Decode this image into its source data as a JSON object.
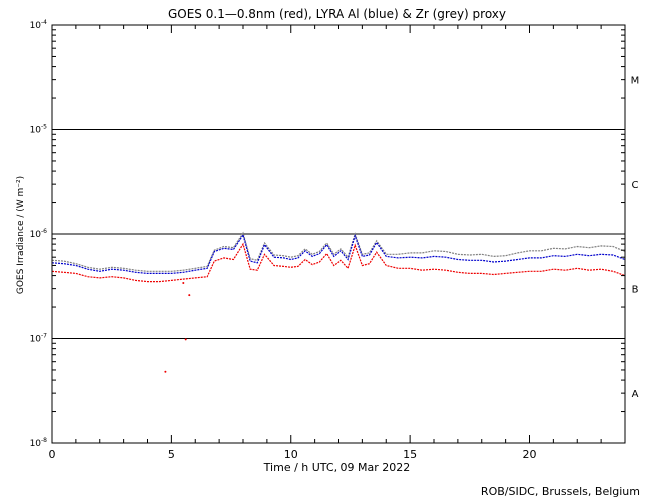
{
  "chart_data": {
    "type": "line",
    "title": "GOES 0.1—0.8nm (red), LYRA Al (blue) & Zr (grey) proxy",
    "xlabel": "Time / h UTC, 09 Mar 2022",
    "ylabel": "GOES Irradiance / (W m⁻²)",
    "y_scale": "log",
    "xlim": [
      0,
      24
    ],
    "ylim": [
      1e-08,
      0.0001
    ],
    "x_ticks": [
      0,
      5,
      10,
      15,
      20
    ],
    "x_tick_labels": [
      "0",
      "5",
      "10",
      "15",
      "20"
    ],
    "y_ticks": [
      1e-08,
      1e-07,
      1e-06,
      1e-05,
      0.0001
    ],
    "y_tick_labels": [
      {
        "base": "10",
        "exp": "-8"
      },
      {
        "base": "10",
        "exp": "-7"
      },
      {
        "base": "10",
        "exp": "-6"
      },
      {
        "base": "10",
        "exp": "-5"
      },
      {
        "base": "10",
        "exp": "-4"
      }
    ],
    "class_lines": [
      1e-07,
      1e-06,
      1e-05
    ],
    "class_labels": [
      {
        "label": "A",
        "y": 3e-08
      },
      {
        "label": "B",
        "y": 3e-07
      },
      {
        "label": "C",
        "y": 3e-06
      },
      {
        "label": "M",
        "y": 3e-05
      }
    ],
    "credit": "ROB/SIDC, Brussels, Belgium",
    "grid": false,
    "legend": "in title",
    "series": [
      {
        "color": "#808080",
        "x": [
          0,
          0.5,
          1,
          1.5,
          2,
          2.5,
          3,
          3.5,
          4,
          4.5,
          5,
          5.5,
          6,
          6.5,
          6.8,
          7.2,
          7.6,
          8,
          8.3,
          8.6,
          8.9,
          9.3,
          9.7,
          10,
          10.3,
          10.6,
          10.9,
          11.2,
          11.5,
          11.8,
          12.1,
          12.4,
          12.7,
          13,
          13.3,
          13.6,
          14,
          14.5,
          15,
          15.5,
          16,
          16.5,
          17,
          17.5,
          18,
          18.5,
          19,
          19.5,
          20,
          20.5,
          21,
          21.5,
          22,
          22.5,
          23,
          23.5,
          24
        ],
        "y": [
          5.6e-07,
          5.5e-07,
          5.2e-07,
          4.8e-07,
          4.6e-07,
          4.8e-07,
          4.7e-07,
          4.5e-07,
          4.4e-07,
          4.4e-07,
          4.4e-07,
          4.5e-07,
          4.7e-07,
          4.9e-07,
          7e-07,
          7.6e-07,
          7.4e-07,
          1.02e-06,
          5.8e-07,
          5.6e-07,
          8.2e-07,
          6.3e-07,
          6.2e-07,
          6e-07,
          6.2e-07,
          7.2e-07,
          6.4e-07,
          6.8e-07,
          8.2e-07,
          6.4e-07,
          7.2e-07,
          6e-07,
          1e-06,
          6.4e-07,
          6.6e-07,
          8.6e-07,
          6.4e-07,
          6.4e-07,
          6.6e-07,
          6.6e-07,
          6.9e-07,
          6.8e-07,
          6.4e-07,
          6.3e-07,
          6.4e-07,
          6.1e-07,
          6.2e-07,
          6.6e-07,
          6.9e-07,
          6.9e-07,
          7.3e-07,
          7.2e-07,
          7.6e-07,
          7.4e-07,
          7.7e-07,
          7.6e-07,
          6.8e-07
        ]
      },
      {
        "color": "#0000cc",
        "x": [
          0,
          0.5,
          1,
          1.5,
          2,
          2.5,
          3,
          3.5,
          4,
          4.5,
          5,
          5.5,
          6,
          6.5,
          6.8,
          7.2,
          7.6,
          8,
          8.3,
          8.6,
          8.9,
          9.3,
          9.7,
          10,
          10.3,
          10.6,
          10.9,
          11.2,
          11.5,
          11.8,
          12.1,
          12.4,
          12.7,
          13,
          13.3,
          13.6,
          14,
          14.5,
          15,
          15.5,
          16,
          16.5,
          17,
          17.5,
          18,
          18.5,
          19,
          19.5,
          20,
          20.5,
          21,
          21.5,
          22,
          22.5,
          23,
          23.5,
          24
        ],
        "y": [
          5.3e-07,
          5.2e-07,
          5e-07,
          4.6e-07,
          4.4e-07,
          4.6e-07,
          4.5e-07,
          4.3e-07,
          4.2e-07,
          4.2e-07,
          4.2e-07,
          4.3e-07,
          4.5e-07,
          4.7e-07,
          6.8e-07,
          7.3e-07,
          7.1e-07,
          9.8e-07,
          5.5e-07,
          5.3e-07,
          7.9e-07,
          6e-07,
          5.9e-07,
          5.7e-07,
          5.9e-07,
          6.9e-07,
          6.1e-07,
          6.5e-07,
          7.9e-07,
          6.1e-07,
          6.9e-07,
          5.7e-07,
          9.6e-07,
          6.1e-07,
          6.3e-07,
          8.3e-07,
          6.1e-07,
          5.9e-07,
          6e-07,
          5.9e-07,
          6.1e-07,
          6e-07,
          5.7e-07,
          5.6e-07,
          5.6e-07,
          5.4e-07,
          5.5e-07,
          5.7e-07,
          5.9e-07,
          5.9e-07,
          6.2e-07,
          6.1e-07,
          6.4e-07,
          6.2e-07,
          6.4e-07,
          6.3e-07,
          5.7e-07
        ]
      },
      {
        "color": "#ee0000",
        "x": [
          0,
          0.5,
          1,
          1.5,
          2,
          2.5,
          3,
          3.5,
          4,
          4.5,
          5,
          5.5,
          6,
          6.5,
          6.8,
          7.2,
          7.6,
          8,
          8.3,
          8.6,
          8.9,
          9.3,
          9.7,
          10,
          10.3,
          10.6,
          10.9,
          11.2,
          11.5,
          11.8,
          12.1,
          12.4,
          12.7,
          13,
          13.3,
          13.6,
          14,
          14.5,
          15,
          15.5,
          16,
          16.5,
          17,
          17.5,
          18,
          18.5,
          19,
          19.5,
          20,
          20.5,
          21,
          21.5,
          22,
          22.5,
          23,
          23.5,
          24
        ],
        "y": [
          4.4e-07,
          4.3e-07,
          4.2e-07,
          3.9e-07,
          3.8e-07,
          3.9e-07,
          3.8e-07,
          3.6e-07,
          3.5e-07,
          3.5e-07,
          3.6e-07,
          3.7e-07,
          3.8e-07,
          3.9e-07,
          5.5e-07,
          5.9e-07,
          5.7e-07,
          8e-07,
          4.6e-07,
          4.5e-07,
          6.4e-07,
          5e-07,
          4.9e-07,
          4.8e-07,
          4.9e-07,
          5.7e-07,
          5.1e-07,
          5.4e-07,
          6.5e-07,
          5e-07,
          5.6e-07,
          4.7e-07,
          7.8e-07,
          5e-07,
          5.2e-07,
          6.7e-07,
          5e-07,
          4.7e-07,
          4.7e-07,
          4.5e-07,
          4.6e-07,
          4.5e-07,
          4.3e-07,
          4.2e-07,
          4.2e-07,
          4.1e-07,
          4.2e-07,
          4.3e-07,
          4.4e-07,
          4.4e-07,
          4.6e-07,
          4.5e-07,
          4.7e-07,
          4.5e-07,
          4.6e-07,
          4.4e-07,
          4e-07
        ]
      }
    ],
    "scatter_points": [
      {
        "x": 4.75,
        "y": 4.8e-08,
        "color": "#ee0000"
      },
      {
        "x": 5.6,
        "y": 9.8e-08,
        "color": "#ee0000"
      },
      {
        "x": 5.75,
        "y": 2.6e-07,
        "color": "#ee0000"
      },
      {
        "x": 5.5,
        "y": 3.4e-07,
        "color": "#ee0000"
      }
    ]
  }
}
